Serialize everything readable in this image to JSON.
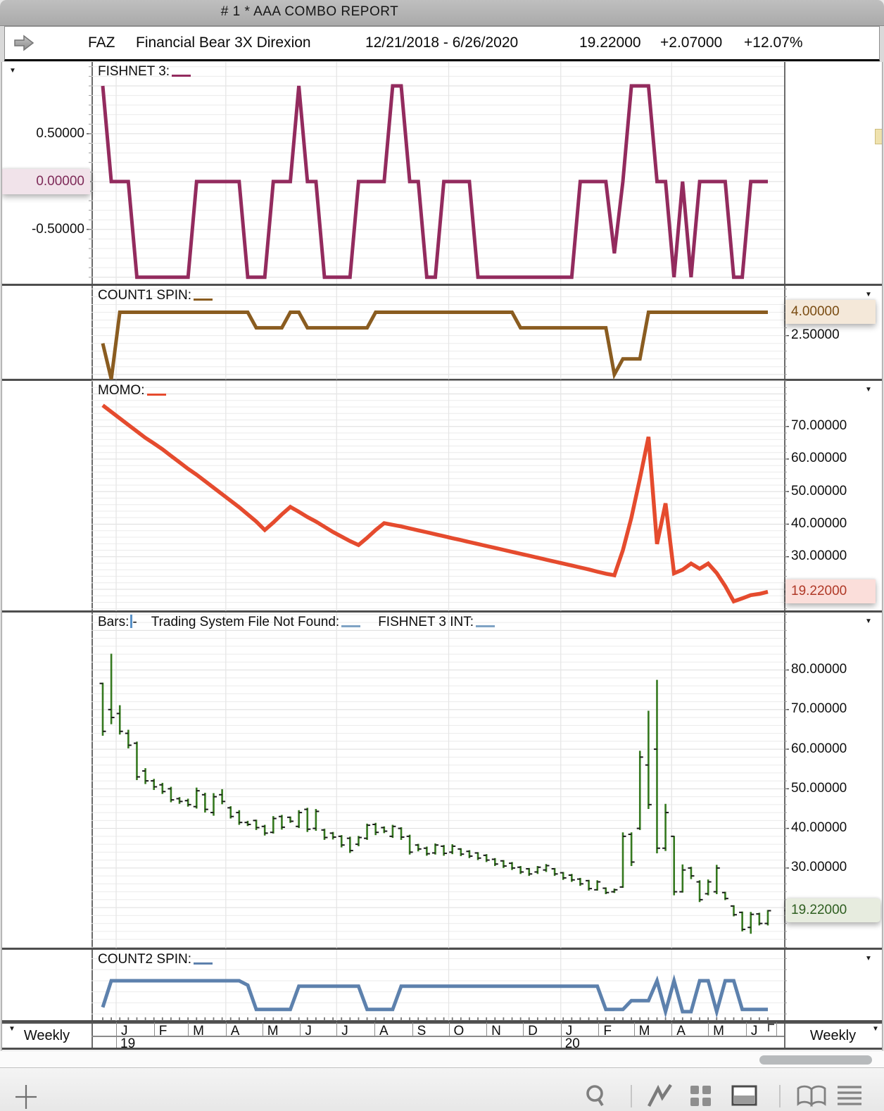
{
  "window": {
    "title": "#  1 * AAA  COMBO  REPORT"
  },
  "header": {
    "arrow_icon": "forward-arrow",
    "symbol": "FAZ",
    "name": "Financial Bear 3X Direxion",
    "date_range": "12/21/2018 - 6/26/2020",
    "price": "19.22000",
    "change": "+2.07000",
    "change_pct": "+12.07%"
  },
  "colors": {
    "fishnet_line": "#932b5e",
    "count1_line": "#8a5c20",
    "momo_line": "#e54b2e",
    "bars_green": "#35791f",
    "count2_line": "#5d81ad",
    "blank_blue": "#7fa3c4",
    "cursor_blue": "#5a92c8",
    "grid_minor": "#ebebeb",
    "grid_major": "#dddddd",
    "grid_vertical": "#e6e6e6"
  },
  "xaxis": {
    "weeks_total": 79,
    "interval_left": "Weekly",
    "interval_right": "Weekly",
    "quarter_weeks": [
      1.571,
      14.429,
      27.429,
      40.571,
      53.714,
      66.714
    ],
    "month_letters": [
      "J",
      "F",
      "M",
      "A",
      "M",
      "J",
      "J",
      "A",
      "S",
      "O",
      "N",
      "D",
      "J",
      "F",
      "M",
      "A",
      "M",
      "J"
    ],
    "month_boundaries": [
      1.571,
      6.0,
      10.0,
      14.429,
      18.714,
      23.143,
      27.429,
      31.857,
      36.286,
      40.571,
      45.0,
      49.286,
      53.714,
      58.143,
      62.286,
      66.714,
      71.0,
      75.429,
      79.0
    ],
    "year_marks": [
      {
        "week": 1.571,
        "label": "19"
      },
      {
        "week": 53.714,
        "label": "20"
      }
    ],
    "end_marker_week": 78
  },
  "chart_data": [
    {
      "id": "fishnet",
      "type": "line",
      "title_parts": [
        {
          "text": "FISHNET 3:"
        },
        {
          "blank": true
        }
      ],
      "color": "#932b5e",
      "axis_side": "left",
      "ylim": [
        -1.068,
        1.25
      ],
      "grid_minor": 0.1,
      "grid_major": 0.5,
      "yticks": [
        {
          "value": 0.5,
          "label": "0.50000"
        },
        {
          "value": 0.0,
          "label": "0.00000",
          "highlight": {
            "bg": "#f1e3ea",
            "fg": "#7e2a58"
          }
        },
        {
          "value": -0.5,
          "label": "-0.50000"
        }
      ],
      "values": [
        1,
        0,
        0,
        0,
        -1,
        -1,
        -1,
        -1,
        -1,
        -1,
        -1,
        0,
        0,
        0,
        0,
        0,
        0,
        -1,
        -1,
        -1,
        0,
        0,
        0,
        1,
        0,
        0,
        -1,
        -1,
        -1,
        -1,
        0,
        0,
        0,
        0,
        1,
        1,
        0,
        0,
        -1,
        -1,
        0,
        0,
        0,
        0,
        -1,
        -1,
        -1,
        -1,
        -1,
        -1,
        -1,
        -1,
        -1,
        -1,
        -1,
        -1,
        0,
        0,
        0,
        0,
        -0.75,
        0,
        1,
        1,
        1,
        0,
        0,
        -1,
        0,
        -1,
        0,
        0,
        0,
        0,
        -1,
        -1,
        0,
        0,
        0
      ]
    },
    {
      "id": "count1",
      "type": "line",
      "title_parts": [
        {
          "text": "COUNT1 SPIN:"
        },
        {
          "blank": true
        }
      ],
      "color": "#8a5c20",
      "axis_side": "right",
      "ylim": [
        -0.3,
        5.7
      ],
      "grid_minor": 0.5,
      "grid_major": 10,
      "yticks": [
        {
          "value": 4.0,
          "label": "4.00000",
          "highlight": {
            "bg": "#f4e8d9",
            "fg": "#7a4c12"
          }
        },
        {
          "value": 2.5,
          "label": "2.50000"
        }
      ],
      "values": [
        2,
        -0.3,
        4,
        4,
        4,
        4,
        4,
        4,
        4,
        4,
        4,
        4,
        4,
        4,
        4,
        4,
        4,
        4,
        3,
        3,
        3,
        3,
        4,
        4,
        3,
        3,
        3,
        3,
        3,
        3,
        3,
        3,
        4,
        4,
        4,
        4,
        4,
        4,
        4,
        4,
        4,
        4,
        4,
        4,
        4,
        4,
        4,
        4,
        4,
        3,
        3,
        3,
        3,
        3,
        3,
        3,
        3,
        3,
        3,
        3,
        0,
        1,
        1,
        1,
        4,
        4,
        4,
        4,
        4,
        4,
        4,
        4,
        4,
        4,
        4,
        4,
        4,
        4,
        4
      ]
    },
    {
      "id": "momo",
      "type": "line",
      "title_parts": [
        {
          "text": "MOMO:"
        },
        {
          "blank": true
        }
      ],
      "color": "#e54b2e",
      "axis_side": "right",
      "ylim": [
        13.4,
        84.0
      ],
      "grid_minor": 2,
      "grid_major": 10,
      "yticks": [
        {
          "value": 70,
          "label": "70.00000"
        },
        {
          "value": 60,
          "label": "60.00000"
        },
        {
          "value": 50,
          "label": "50.00000"
        },
        {
          "value": 40,
          "label": "40.00000"
        },
        {
          "value": 30,
          "label": "30.00000"
        },
        {
          "value": 19.22,
          "label": "19.22000",
          "highlight": {
            "bg": "#fbdeda",
            "fg": "#b03927"
          }
        }
      ],
      "values": [
        76.5,
        74.5,
        72.5,
        70.5,
        68.5,
        66.5,
        64.8,
        63,
        61,
        59,
        57,
        55.2,
        53.2,
        51.2,
        49.2,
        47.2,
        45.2,
        43,
        40.8,
        38.2,
        40.5,
        43,
        45.3,
        43.8,
        42.2,
        40.8,
        39.2,
        37.6,
        36.2,
        34.8,
        33.6,
        35.8,
        38.2,
        40.3,
        39.8,
        39.3,
        38.7,
        38.1,
        37.5,
        36.9,
        36.3,
        35.7,
        35.1,
        34.5,
        33.9,
        33.3,
        32.7,
        32.1,
        31.5,
        30.9,
        30.3,
        29.7,
        29.1,
        28.5,
        27.9,
        27.3,
        26.7,
        26.1,
        25.4,
        24.8,
        24.3,
        32,
        42,
        54,
        66.8,
        33.9,
        46.4,
        24.9,
        26,
        27.9,
        26.3,
        27.9,
        25,
        21,
        16.3,
        17.2,
        18.2,
        18.6,
        19.22
      ]
    },
    {
      "id": "bars",
      "type": "ohlc",
      "title_parts": [
        {
          "text": "Bars:"
        },
        {
          "cursor": true
        },
        {
          "text": "-"
        },
        {
          "gap": 20
        },
        {
          "text": "Trading System File Not Found:"
        },
        {
          "blank": true,
          "color": "#7fa3c4"
        },
        {
          "gap": 22
        },
        {
          "text": "FISHNET 3 INT:"
        },
        {
          "blank": true,
          "color": "#7fa3c4"
        }
      ],
      "color": "#35791f",
      "axis_side": "right",
      "ylim": [
        9.8,
        94.5
      ],
      "grid_minor": 2,
      "grid_major": 10,
      "yticks": [
        {
          "value": 80,
          "label": "80.00000"
        },
        {
          "value": 70,
          "label": "70.00000"
        },
        {
          "value": 60,
          "label": "60.00000"
        },
        {
          "value": 50,
          "label": "50.00000"
        },
        {
          "value": 40,
          "label": "40.00000"
        },
        {
          "value": 30,
          "label": "30.00000"
        },
        {
          "value": 19.22,
          "label": "19.22000",
          "highlight": {
            "bg": "#e7ecdf",
            "fg": "#2e5e20",
            "rounded": true
          }
        }
      ],
      "high": [
        76.8,
        84.1,
        71.1,
        64.9,
        61.9,
        55.2,
        52.5,
        51.5,
        50.5,
        47.9,
        47.5,
        50.3,
        49,
        48.9,
        49.9,
        45.6,
        44.6,
        41.9,
        42.2,
        40.9,
        43.1,
        43.4,
        43,
        44.6,
        45.2,
        44.9,
        39.9,
        39.1,
        38.3,
        37.9,
        38.1,
        41.2,
        41.4,
        40.5,
        40.9,
        40.3,
        38.4,
        36.1,
        35.4,
        36.2,
        35.8,
        36,
        35,
        34.5,
        34,
        33.5,
        32.5,
        32,
        31.5,
        30.5,
        30,
        30.5,
        31,
        30,
        29,
        28.5,
        27.5,
        27,
        26.9,
        25.1,
        24.8,
        39,
        39,
        59.6,
        69.7,
        77.5,
        46.2,
        38.1,
        30.9,
        30.3,
        26.9,
        27.1,
        30.8,
        24,
        20.6,
        19,
        18.9,
        18.7,
        19.4
      ],
      "low": [
        63.4,
        66.3,
        63.7,
        60.2,
        52.2,
        51.2,
        49.7,
        48.7,
        46.6,
        46.2,
        45.5,
        45,
        44,
        43.2,
        46.1,
        42.5,
        40.9,
        40.6,
        39.6,
        38.2,
        38.7,
        39.7,
        41.4,
        40.1,
        39.1,
        39.4,
        37.1,
        37.2,
        35.2,
        33.8,
        35.5,
        37.1,
        38.3,
        38.8,
        37.6,
        37.1,
        33.4,
        34.2,
        33.1,
        33.4,
        33.1,
        33.5,
        33,
        32.5,
        32,
        31.5,
        30.5,
        30,
        29.5,
        28.5,
        28,
        28.5,
        29,
        28,
        27,
        26.5,
        25.5,
        24.3,
        24.3,
        23.4,
        23.7,
        25,
        30.5,
        39.6,
        44.9,
        33.7,
        34.3,
        23.1,
        23.8,
        27.2,
        21.4,
        23.1,
        23.4,
        21.9,
        17.8,
        14,
        13.4,
        15.5,
        15.5
      ],
      "open": [
        76.6,
        70,
        69,
        64,
        61.5,
        54.5,
        52,
        51,
        50,
        47.5,
        47,
        45.5,
        48.5,
        44,
        48.5,
        45.2,
        44,
        41.5,
        42,
        40.5,
        39,
        43,
        42.8,
        40.5,
        44.8,
        40,
        39.6,
        38.8,
        38,
        37.5,
        36,
        37.5,
        41,
        40.2,
        38,
        40,
        38,
        35.8,
        35,
        33.8,
        35.5,
        34,
        34.8,
        34.2,
        33.8,
        33.2,
        32.2,
        31.8,
        31.2,
        30.2,
        29.8,
        29,
        29.5,
        29.8,
        28.8,
        28.2,
        27.2,
        26.8,
        24.5,
        24.9,
        24,
        25.2,
        38.5,
        40,
        56,
        60,
        35,
        38,
        24,
        30,
        26.5,
        23.5,
        24,
        23.8,
        20.4,
        18.8,
        15,
        18.4,
        16
      ],
      "close": [
        64.5,
        68,
        64.5,
        61,
        53,
        52,
        50.5,
        49.3,
        47.2,
        46.8,
        46,
        49.5,
        44.8,
        48,
        46.8,
        43,
        41.5,
        41,
        40.2,
        38.8,
        42.5,
        40.3,
        41.8,
        44,
        39.8,
        44.3,
        37.7,
        37.8,
        35.8,
        34.4,
        37.7,
        40.8,
        39,
        39.3,
        40.5,
        37.8,
        34,
        34.8,
        33.6,
        35.8,
        33.7,
        35.5,
        33.5,
        33,
        32.5,
        32,
        31,
        30.5,
        30,
        29,
        28.5,
        30.2,
        30.6,
        28.5,
        27.5,
        27,
        26,
        24.8,
        26.5,
        23.8,
        24.5,
        38,
        31.5,
        58,
        46,
        35,
        44,
        24,
        29.5,
        28,
        22,
        26.5,
        30,
        22.3,
        18.2,
        14.5,
        18.3,
        16,
        19.22
      ]
    },
    {
      "id": "count2",
      "type": "line",
      "title_parts": [
        {
          "text": "COUNT2 SPIN:"
        },
        {
          "blank": true
        }
      ],
      "color": "#5d81ad",
      "axis_side": "right",
      "ylim": [
        0.4,
        6.8
      ],
      "grid_minor": 1,
      "grid_major": 10,
      "yticks": [],
      "week_ticks": true,
      "values": [
        1.6,
        4,
        4,
        4,
        4,
        4,
        4,
        4,
        4,
        4,
        4,
        4,
        4,
        4,
        4,
        4,
        4,
        3.6,
        1.4,
        1.4,
        1.4,
        1.4,
        1.4,
        3.5,
        3.5,
        3.5,
        3.5,
        3.5,
        3.5,
        3.5,
        3.5,
        1.4,
        1.4,
        1.4,
        1.4,
        3.5,
        3.5,
        3.5,
        3.5,
        3.5,
        3.5,
        3.5,
        3.5,
        3.5,
        3.5,
        3.5,
        3.5,
        3.5,
        3.5,
        3.5,
        3.5,
        3.5,
        3.5,
        3.5,
        3.5,
        3.5,
        3.5,
        3.5,
        3.5,
        1.4,
        1.4,
        1.4,
        2.2,
        2.2,
        2.2,
        4,
        1.2,
        4,
        1.2,
        1.2,
        4,
        4,
        1.2,
        4,
        4,
        1.4,
        1.4,
        1.4,
        1.4
      ]
    }
  ],
  "toolbar": {
    "icons": [
      "crosshair-icon",
      "search-icon",
      "pulse-icon",
      "grid-icon",
      "split-panel-icon",
      "book-icon",
      "list-icon"
    ]
  }
}
